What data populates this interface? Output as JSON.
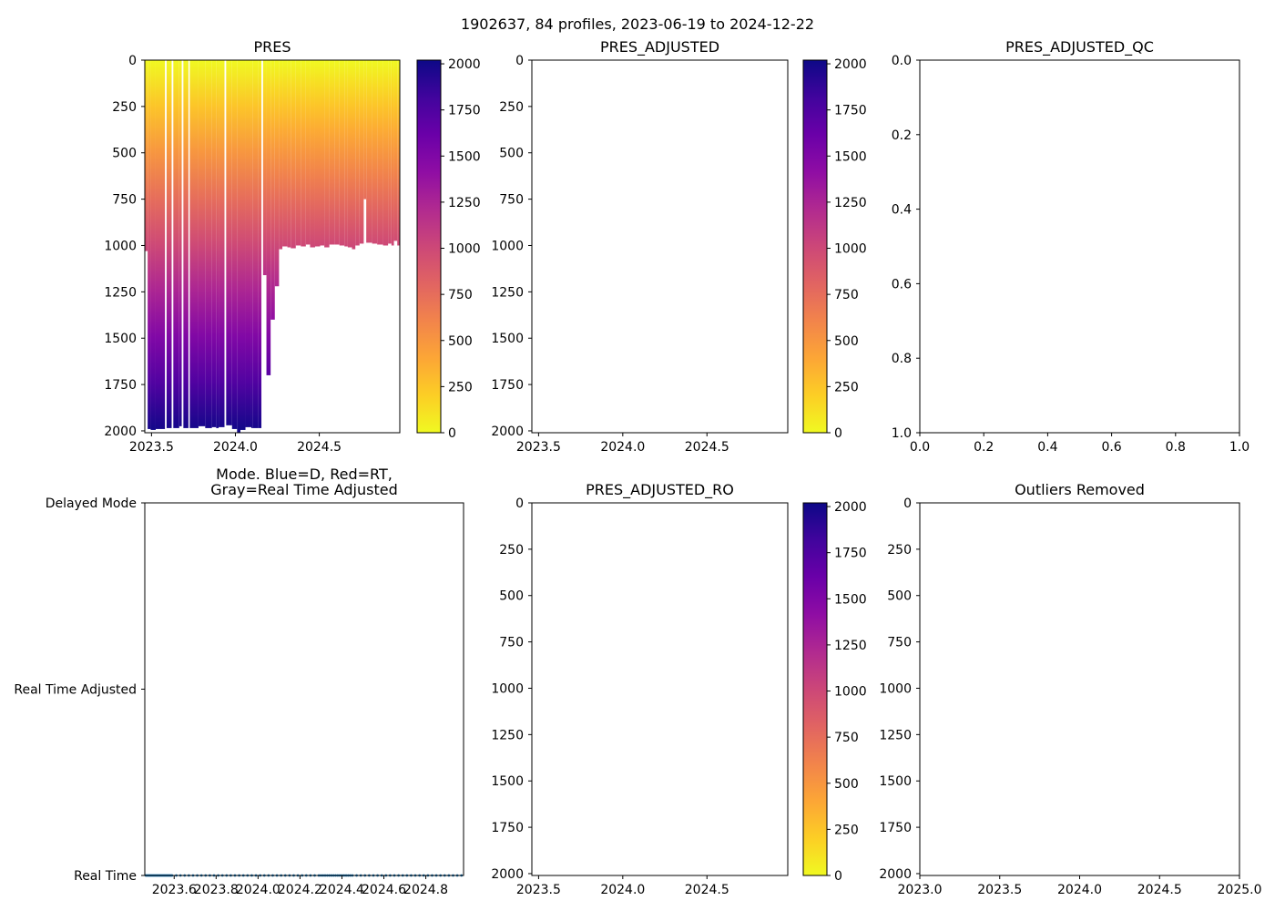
{
  "figure": {
    "title": "1902637, 84 profiles, 2023-06-19 to 2024-12-22",
    "colors": {
      "plasma": [
        "#0d0887",
        "#41049d",
        "#6a00a8",
        "#8f0da4",
        "#b12a90",
        "#cc4778",
        "#e16462",
        "#f2844b",
        "#fca636",
        "#fcce25",
        "#f0f921"
      ],
      "mode_points": "#1f77b4",
      "frame": "#000000",
      "background": "#ffffff"
    }
  },
  "chart_data": [
    {
      "id": "pres",
      "type": "heatmap",
      "title": "PRES",
      "xlabel": "",
      "ylabel": "",
      "xlim": [
        2023.46,
        2024.98
      ],
      "ylim": [
        2010,
        0
      ],
      "x_ticks": [
        2023.5,
        2024.0,
        2024.5
      ],
      "x_tick_labels": [
        "2023.5",
        "2024.0",
        "2024.5"
      ],
      "y_ticks": [
        0,
        250,
        500,
        750,
        1000,
        1250,
        1500,
        1750,
        2000
      ],
      "y_tick_labels": [
        "0",
        "250",
        "500",
        "750",
        "1000",
        "1250",
        "1500",
        "1750",
        "2000"
      ],
      "colorbar": {
        "cmap": "plasma_r",
        "vmin": 0,
        "vmax": 2020,
        "ticks": [
          0,
          250,
          500,
          750,
          1000,
          1250,
          1500,
          1750,
          2000
        ],
        "tick_labels": [
          "0",
          "250",
          "500",
          "750",
          "1000",
          "1250",
          "1500",
          "1750",
          "2000"
        ]
      },
      "profiles": [
        {
          "x0": 2023.46,
          "x1": 2023.477,
          "max_pres": 1030
        },
        {
          "x0": 2023.477,
          "x1": 2023.495,
          "max_pres": 1990
        },
        {
          "x0": 2023.495,
          "x1": 2023.525,
          "max_pres": 1995
        },
        {
          "x0": 2023.525,
          "x1": 2023.58,
          "max_pres": 1990
        },
        {
          "x0": 2023.59,
          "x1": 2023.62,
          "max_pres": 1985
        },
        {
          "x0": 2023.63,
          "x1": 2023.665,
          "max_pres": 1985
        },
        {
          "x0": 2023.665,
          "x1": 2023.68,
          "max_pres": 1975
        },
        {
          "x0": 2023.69,
          "x1": 2023.72,
          "max_pres": 1985
        },
        {
          "x0": 2023.728,
          "x1": 2023.745,
          "max_pres": 1985
        },
        {
          "x0": 2023.745,
          "x1": 2023.78,
          "max_pres": 1985
        },
        {
          "x0": 2023.78,
          "x1": 2023.82,
          "max_pres": 1975
        },
        {
          "x0": 2023.82,
          "x1": 2023.86,
          "max_pres": 1985
        },
        {
          "x0": 2023.86,
          "x1": 2023.885,
          "max_pres": 1980
        },
        {
          "x0": 2023.885,
          "x1": 2023.9,
          "max_pres": 1985
        },
        {
          "x0": 2023.9,
          "x1": 2023.935,
          "max_pres": 1980
        },
        {
          "x0": 2023.945,
          "x1": 2023.98,
          "max_pres": 1970
        },
        {
          "x0": 2023.98,
          "x1": 2024.01,
          "max_pres": 1990
        },
        {
          "x0": 2024.01,
          "x1": 2024.03,
          "max_pres": 2010
        },
        {
          "x0": 2024.03,
          "x1": 2024.06,
          "max_pres": 1995
        },
        {
          "x0": 2024.06,
          "x1": 2024.095,
          "max_pres": 1980
        },
        {
          "x0": 2024.095,
          "x1": 2024.105,
          "max_pres": 1985
        },
        {
          "x0": 2024.105,
          "x1": 2024.135,
          "max_pres": 1985
        },
        {
          "x0": 2024.135,
          "x1": 2024.155,
          "max_pres": 1985
        },
        {
          "x0": 2024.165,
          "x1": 2024.185,
          "max_pres": 1160
        },
        {
          "x0": 2024.185,
          "x1": 2024.21,
          "max_pres": 1700
        },
        {
          "x0": 2024.21,
          "x1": 2024.235,
          "max_pres": 1400
        },
        {
          "x0": 2024.235,
          "x1": 2024.26,
          "max_pres": 1220
        },
        {
          "x0": 2024.26,
          "x1": 2024.28,
          "max_pres": 1020
        },
        {
          "x0": 2024.28,
          "x1": 2024.31,
          "max_pres": 1005
        },
        {
          "x0": 2024.31,
          "x1": 2024.33,
          "max_pres": 1010
        },
        {
          "x0": 2024.33,
          "x1": 2024.36,
          "max_pres": 1015
        },
        {
          "x0": 2024.36,
          "x1": 2024.39,
          "max_pres": 1000
        },
        {
          "x0": 2024.39,
          "x1": 2024.42,
          "max_pres": 1005
        },
        {
          "x0": 2024.42,
          "x1": 2024.445,
          "max_pres": 995
        },
        {
          "x0": 2024.445,
          "x1": 2024.475,
          "max_pres": 1010
        },
        {
          "x0": 2024.475,
          "x1": 2024.505,
          "max_pres": 1005
        },
        {
          "x0": 2024.505,
          "x1": 2024.53,
          "max_pres": 1000
        },
        {
          "x0": 2024.53,
          "x1": 2024.56,
          "max_pres": 1010
        },
        {
          "x0": 2024.56,
          "x1": 2024.59,
          "max_pres": 995
        },
        {
          "x0": 2024.59,
          "x1": 2024.62,
          "max_pres": 995
        },
        {
          "x0": 2024.62,
          "x1": 2024.65,
          "max_pres": 1000
        },
        {
          "x0": 2024.65,
          "x1": 2024.67,
          "max_pres": 1005
        },
        {
          "x0": 2024.67,
          "x1": 2024.695,
          "max_pres": 1010
        },
        {
          "x0": 2024.695,
          "x1": 2024.715,
          "max_pres": 1020
        },
        {
          "x0": 2024.715,
          "x1": 2024.74,
          "max_pres": 1000
        },
        {
          "x0": 2024.74,
          "x1": 2024.765,
          "max_pres": 990
        },
        {
          "x0": 2024.765,
          "x1": 2024.78,
          "max_pres": 750
        },
        {
          "x0": 2024.78,
          "x1": 2024.815,
          "max_pres": 985
        },
        {
          "x0": 2024.815,
          "x1": 2024.845,
          "max_pres": 990
        },
        {
          "x0": 2024.845,
          "x1": 2024.88,
          "max_pres": 995
        },
        {
          "x0": 2024.88,
          "x1": 2024.91,
          "max_pres": 1000
        },
        {
          "x0": 2024.91,
          "x1": 2024.93,
          "max_pres": 990
        },
        {
          "x0": 2024.93,
          "x1": 2024.945,
          "max_pres": 1000
        },
        {
          "x0": 2024.945,
          "x1": 2024.965,
          "max_pres": 975
        },
        {
          "x0": 2024.965,
          "x1": 2024.98,
          "max_pres": 1000
        }
      ]
    },
    {
      "id": "pres_adjusted",
      "type": "heatmap",
      "title": "PRES_ADJUSTED",
      "xlim": [
        2023.46,
        2024.98
      ],
      "ylim": [
        2010,
        0
      ],
      "x_ticks": [
        2023.5,
        2024.0,
        2024.5
      ],
      "x_tick_labels": [
        "2023.5",
        "2024.0",
        "2024.5"
      ],
      "y_ticks": [
        0,
        250,
        500,
        750,
        1000,
        1250,
        1500,
        1750,
        2000
      ],
      "y_tick_labels": [
        "0",
        "250",
        "500",
        "750",
        "1000",
        "1250",
        "1500",
        "1750",
        "2000"
      ],
      "colorbar": {
        "cmap": "plasma_r",
        "vmin": 0,
        "vmax": 2020,
        "ticks": [
          0,
          250,
          500,
          750,
          1000,
          1250,
          1500,
          1750,
          2000
        ],
        "tick_labels": [
          "0",
          "250",
          "500",
          "750",
          "1000",
          "1250",
          "1500",
          "1750",
          "2000"
        ]
      },
      "profiles": []
    },
    {
      "id": "pres_adjusted_qc",
      "type": "scatter",
      "title": "PRES_ADJUSTED_QC",
      "xlim": [
        0,
        1
      ],
      "ylim": [
        1,
        0
      ],
      "x_ticks": [
        0,
        0.2,
        0.4,
        0.6,
        0.8,
        1.0
      ],
      "x_tick_labels": [
        "0.0",
        "0.2",
        "0.4",
        "0.6",
        "0.8",
        "1.0"
      ],
      "y_ticks": [
        1.0,
        0.8,
        0.6,
        0.4,
        0.2,
        0.0
      ],
      "y_tick_labels": [
        "1.0",
        "0.8",
        "0.6",
        "0.4",
        "0.2",
        "0.0"
      ],
      "points": []
    },
    {
      "id": "mode",
      "type": "scatter",
      "title_lines": [
        "Mode. Blue=D, Red=RT,",
        "Gray=Real Time Adjusted"
      ],
      "xlim": [
        2023.46,
        2024.98
      ],
      "ylim": [
        2,
        0
      ],
      "x_ticks": [
        2023.6,
        2023.8,
        2024.0,
        2024.2,
        2024.4,
        2024.6,
        2024.8
      ],
      "x_tick_labels": [
        "2023.6",
        "2023.8",
        "2024.0",
        "2024.2",
        "2024.4",
        "2024.6",
        "2024.8"
      ],
      "y_ticks": [
        0,
        1,
        2
      ],
      "y_tick_labels": [
        "Delayed Mode",
        "Real Time Adjusted",
        "Real Time"
      ],
      "points_y": 2,
      "points_x": [
        2023.465,
        2023.47,
        2023.475,
        2023.48,
        2023.485,
        2023.49,
        2023.495,
        2023.5,
        2023.505,
        2023.51,
        2023.515,
        2023.52,
        2023.525,
        2023.53,
        2023.535,
        2023.54,
        2023.545,
        2023.55,
        2023.555,
        2023.56,
        2023.565,
        2023.57,
        2023.575,
        2023.58,
        2023.585,
        2023.59,
        2023.61,
        2023.63,
        2023.65,
        2023.67,
        2023.69,
        2023.71,
        2023.73,
        2023.75,
        2023.77,
        2023.79,
        2023.81,
        2023.83,
        2023.85,
        2023.87,
        2023.89,
        2023.91,
        2023.93,
        2023.95,
        2023.97,
        2023.99,
        2024.01,
        2024.03,
        2024.05,
        2024.07,
        2024.09,
        2024.11,
        2024.13,
        2024.15,
        2024.17,
        2024.19,
        2024.21,
        2024.23,
        2024.25,
        2024.27,
        2024.29,
        2024.3,
        2024.31,
        2024.32,
        2024.33,
        2024.34,
        2024.35,
        2024.36,
        2024.37,
        2024.38,
        2024.39,
        2024.4,
        2024.41,
        2024.42,
        2024.43,
        2024.44,
        2024.45,
        2024.47,
        2024.49,
        2024.51,
        2024.53,
        2024.55,
        2024.57,
        2024.59,
        2024.61,
        2024.63,
        2024.65,
        2024.67,
        2024.69,
        2024.71,
        2024.73,
        2024.75,
        2024.77,
        2024.79,
        2024.81,
        2024.83,
        2024.85,
        2024.87,
        2024.89,
        2024.91,
        2024.93,
        2024.95,
        2024.97
      ]
    },
    {
      "id": "pres_adjusted_ro",
      "type": "heatmap",
      "title": "PRES_ADJUSTED_RO",
      "xlim": [
        2023.46,
        2024.98
      ],
      "ylim": [
        2010,
        0
      ],
      "x_ticks": [
        2023.5,
        2024.0,
        2024.5
      ],
      "x_tick_labels": [
        "2023.5",
        "2024.0",
        "2024.5"
      ],
      "y_ticks": [
        0,
        250,
        500,
        750,
        1000,
        1250,
        1500,
        1750,
        2000
      ],
      "y_tick_labels": [
        "0",
        "250",
        "500",
        "750",
        "1000",
        "1250",
        "1500",
        "1750",
        "2000"
      ],
      "colorbar": {
        "cmap": "plasma_r",
        "vmin": 0,
        "vmax": 2020,
        "ticks": [
          0,
          250,
          500,
          750,
          1000,
          1250,
          1500,
          1750,
          2000
        ],
        "tick_labels": [
          "0",
          "250",
          "500",
          "750",
          "1000",
          "1250",
          "1500",
          "1750",
          "2000"
        ]
      },
      "profiles": []
    },
    {
      "id": "outliers_removed",
      "type": "scatter",
      "title": "Outliers Removed",
      "xlim": [
        2023.0,
        2025.0
      ],
      "ylim": [
        2010,
        0
      ],
      "x_ticks": [
        2023.0,
        2023.5,
        2024.0,
        2024.5,
        2025.0
      ],
      "x_tick_labels": [
        "2023.0",
        "2023.5",
        "2024.0",
        "2024.5",
        "2025.0"
      ],
      "y_ticks": [
        0,
        250,
        500,
        750,
        1000,
        1250,
        1500,
        1750,
        2000
      ],
      "y_tick_labels": [
        "0",
        "250",
        "500",
        "750",
        "1000",
        "1250",
        "1500",
        "1750",
        "2000"
      ],
      "points": []
    }
  ]
}
